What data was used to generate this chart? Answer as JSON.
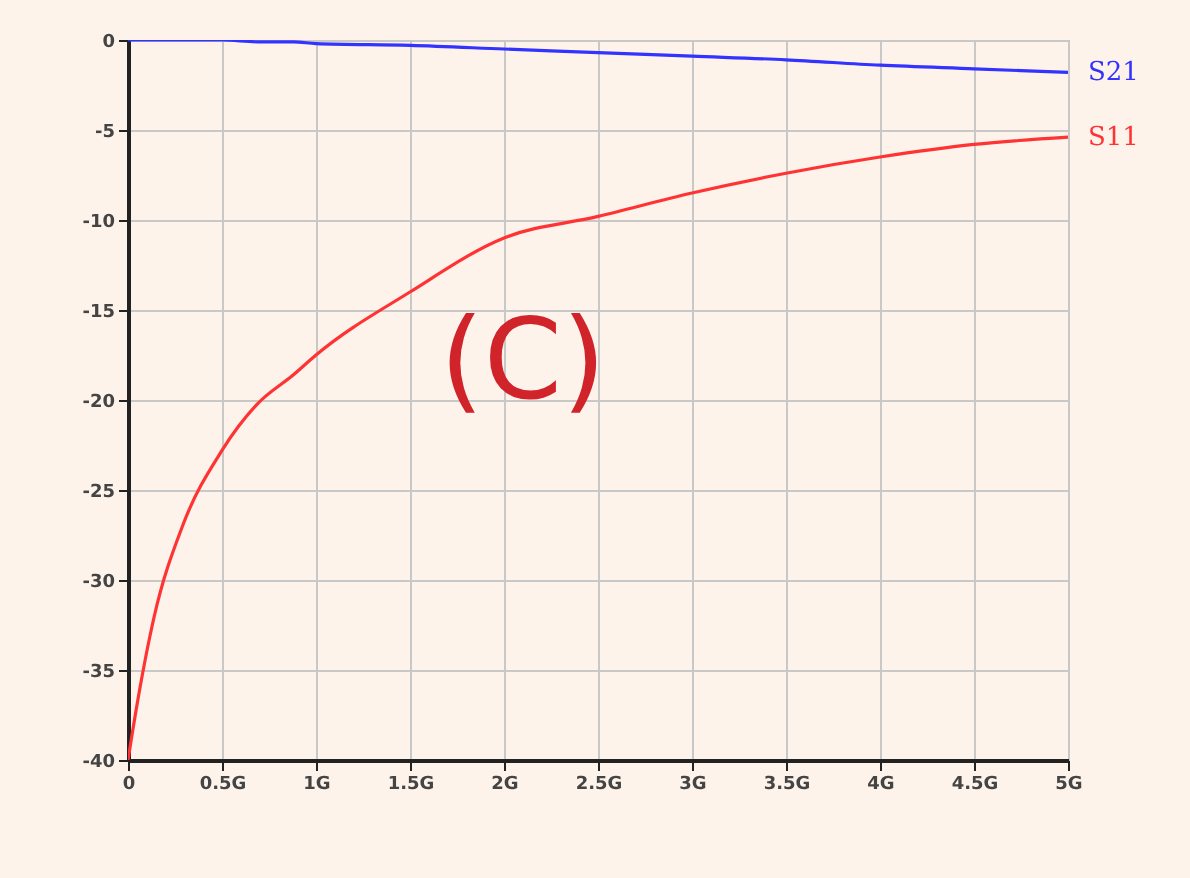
{
  "chart_data": {
    "type": "line",
    "annotations": [
      "(C)"
    ],
    "x": [
      0,
      0.05,
      0.14,
      0.29,
      0.5,
      0.69,
      0.88,
      1,
      1.5,
      2,
      2.5,
      3,
      3.5,
      4,
      4.5,
      5
    ],
    "series": [
      {
        "name": "S21",
        "color": "#3333ff",
        "values": [
          0,
          0,
          0,
          0,
          0,
          -0.1,
          -0.1,
          -0.2,
          -0.3,
          -0.5,
          -0.7,
          -0.9,
          -1.1,
          -1.4,
          -1.6,
          -1.8
        ]
      },
      {
        "name": "S11",
        "color": "#ff3333",
        "values": [
          -40,
          -36.8,
          -32,
          -27.0,
          -22.8,
          -20.2,
          -18.6,
          -17.5,
          -14.0,
          -11.0,
          -9.8,
          -8.5,
          -7.4,
          -6.5,
          -5.8,
          -5.4
        ]
      }
    ],
    "xlim": [
      0,
      5
    ],
    "xticks": [
      0,
      {
        "value": 0.5,
        "label": "0.5G"
      },
      {
        "value": 1,
        "label": "1G"
      },
      {
        "value": 1.5,
        "label": "1.5G"
      },
      {
        "value": 2,
        "label": "2G"
      },
      {
        "value": 2.5,
        "label": "2.5G"
      },
      {
        "value": 3,
        "label": "3G"
      },
      {
        "value": 3.5,
        "label": "3.5G"
      },
      {
        "value": 4,
        "label": "4G"
      },
      {
        "value": 4.5,
        "label": "4.5G"
      },
      {
        "value": 5,
        "label": "5G"
      }
    ],
    "ylim": [
      -40,
      0
    ],
    "yticks": [
      0,
      -5,
      -10,
      -15,
      -20,
      -25,
      -30,
      -35,
      -40
    ],
    "grid": true,
    "legend": "right",
    "marker": "none",
    "line_style": "solid"
  }
}
